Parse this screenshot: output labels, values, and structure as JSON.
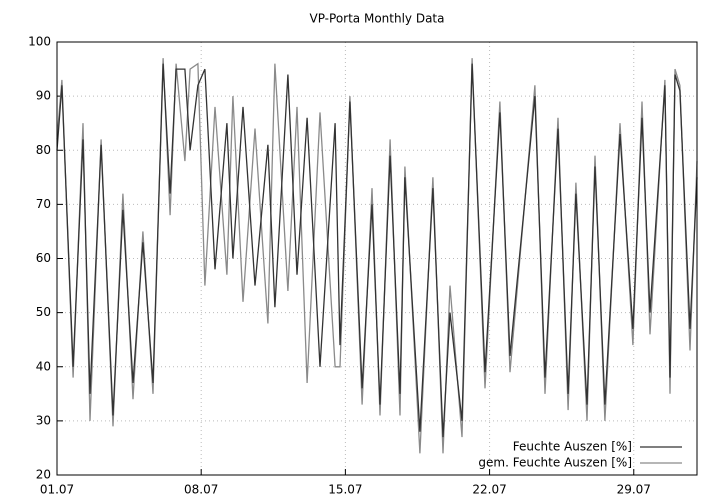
{
  "chart_data": {
    "type": "line",
    "title": "VP-Porta Monthly Data",
    "x": [
      1.0,
      1.24,
      1.78,
      2.26,
      2.6,
      3.14,
      3.72,
      4.2,
      4.69,
      5.17,
      5.66,
      6.15,
      6.49,
      6.78,
      7.21,
      7.46,
      7.84,
      8.18,
      8.67,
      9.25,
      9.54,
      10.03,
      10.61,
      11.24,
      11.58,
      12.21,
      12.65,
      13.14,
      13.77,
      14.5,
      14.74,
      15.22,
      15.81,
      16.29,
      16.68,
      17.17,
      17.65,
      17.89,
      18.62,
      19.25,
      19.74,
      20.08,
      20.66,
      21.15,
      21.78,
      22.5,
      22.99,
      24.2,
      24.69,
      25.32,
      25.81,
      26.19,
      26.73,
      27.12,
      27.6,
      28.33,
      28.96,
      29.4,
      29.79,
      30.51,
      30.76,
      31.0,
      31.24,
      31.73,
      32.07
    ],
    "series": [
      {
        "name": "gem. Feuchte Auszen [%]",
        "color": "#8a8a8a",
        "values": [
          82,
          93,
          38,
          85,
          30,
          82,
          29,
          72,
          34,
          65,
          35,
          97,
          68,
          96,
          78,
          95,
          96,
          55,
          88,
          57,
          90,
          52,
          84,
          48,
          96,
          54,
          88,
          37,
          87,
          40,
          40,
          90,
          33,
          73,
          31,
          82,
          31,
          77,
          24,
          75,
          24,
          55,
          27,
          97,
          36,
          89,
          39,
          92,
          35,
          86,
          32,
          74,
          30,
          79,
          30,
          85,
          44,
          89,
          46,
          93,
          35,
          95,
          92,
          43,
          78
        ]
      },
      {
        "name": "Feuchte Auszen [%]",
        "color": "#333333",
        "values": [
          80,
          92,
          40,
          82,
          35,
          81,
          31,
          69,
          37,
          63,
          37,
          96,
          72,
          95,
          95,
          80,
          92,
          95,
          58,
          85,
          60,
          88,
          55,
          81,
          51,
          94,
          57,
          86,
          40,
          85,
          44,
          89,
          36,
          70,
          33,
          79,
          35,
          75,
          28,
          73,
          27,
          50,
          30,
          96,
          39,
          87,
          42,
          90,
          38,
          84,
          35,
          72,
          33,
          77,
          33,
          83,
          47,
          86,
          50,
          92,
          38,
          94,
          91,
          47,
          75
        ]
      }
    ],
    "xlim": [
      1,
      32.07
    ],
    "xticks": [
      {
        "value": 1,
        "label": "01.07"
      },
      {
        "value": 8,
        "label": "08.07"
      },
      {
        "value": 15,
        "label": "15.07"
      },
      {
        "value": 22,
        "label": "22.07"
      },
      {
        "value": 29,
        "label": "29.07"
      }
    ],
    "ylim": [
      20,
      100
    ],
    "yticks": [
      20,
      30,
      40,
      50,
      60,
      70,
      80,
      90,
      100
    ],
    "grid": true,
    "legend": "lower right"
  }
}
